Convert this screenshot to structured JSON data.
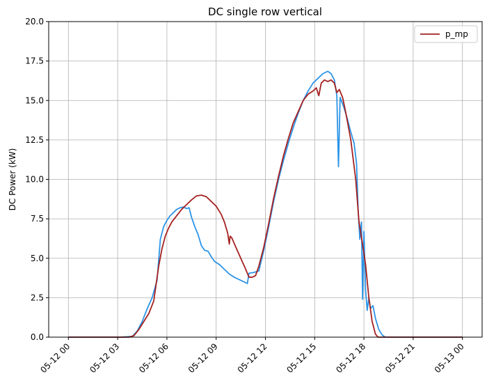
{
  "chart_data": {
    "type": "line",
    "title": "DC single row vertical",
    "xlabel": "",
    "ylabel": "DC Power (kW)",
    "xlim": [
      "05-12 00",
      "05-13 00"
    ],
    "ylim": [
      0,
      20
    ],
    "grid": true,
    "legend_position": "top-right",
    "x_ticks": [
      "05-12 00",
      "05-12 03",
      "05-12 06",
      "05-12 09",
      "05-12 12",
      "05-12 15",
      "05-12 18",
      "05-12 21",
      "05-13 00"
    ],
    "y_ticks": [
      "0.0",
      "2.5",
      "5.0",
      "7.5",
      "10.0",
      "12.5",
      "15.0",
      "17.5",
      "20.0"
    ],
    "x_unit": "hour of 2024-05-12",
    "series": [
      {
        "name": "",
        "color": "#2c94e6",
        "in_legend": false,
        "points": [
          [
            0,
            0
          ],
          [
            3.2,
            0
          ],
          [
            3.9,
            0.05
          ],
          [
            4.2,
            0.4
          ],
          [
            4.5,
            1.0
          ],
          [
            4.8,
            1.8
          ],
          [
            5.1,
            2.5
          ],
          [
            5.4,
            3.6
          ],
          [
            5.6,
            6.2
          ],
          [
            5.8,
            7.0
          ],
          [
            6.0,
            7.4
          ],
          [
            6.2,
            7.7
          ],
          [
            6.4,
            7.9
          ],
          [
            6.6,
            8.1
          ],
          [
            6.8,
            8.2
          ],
          [
            7.0,
            8.25
          ],
          [
            7.2,
            8.15
          ],
          [
            7.35,
            8.2
          ],
          [
            7.5,
            7.6
          ],
          [
            7.7,
            7.0
          ],
          [
            7.9,
            6.5
          ],
          [
            8.1,
            5.8
          ],
          [
            8.3,
            5.5
          ],
          [
            8.5,
            5.45
          ],
          [
            8.7,
            5.1
          ],
          [
            8.9,
            4.8
          ],
          [
            9.2,
            4.6
          ],
          [
            9.5,
            4.3
          ],
          [
            9.8,
            4.0
          ],
          [
            10.1,
            3.8
          ],
          [
            10.4,
            3.65
          ],
          [
            10.7,
            3.5
          ],
          [
            10.9,
            3.4
          ],
          [
            11.0,
            4.05
          ],
          [
            11.3,
            4.1
          ],
          [
            11.6,
            4.2
          ],
          [
            11.9,
            5.5
          ],
          [
            12.2,
            7.0
          ],
          [
            12.5,
            8.6
          ],
          [
            12.8,
            10.0
          ],
          [
            13.1,
            11.2
          ],
          [
            13.4,
            12.3
          ],
          [
            13.7,
            13.3
          ],
          [
            14.0,
            14.2
          ],
          [
            14.3,
            15.0
          ],
          [
            14.6,
            15.6
          ],
          [
            14.9,
            16.1
          ],
          [
            15.2,
            16.4
          ],
          [
            15.5,
            16.7
          ],
          [
            15.8,
            16.85
          ],
          [
            16.0,
            16.7
          ],
          [
            16.2,
            16.3
          ],
          [
            16.35,
            15.3
          ],
          [
            16.45,
            10.8
          ],
          [
            16.55,
            15.2
          ],
          [
            16.8,
            14.5
          ],
          [
            17.0,
            13.8
          ],
          [
            17.2,
            13.0
          ],
          [
            17.4,
            12.3
          ],
          [
            17.55,
            11.0
          ],
          [
            17.65,
            8.0
          ],
          [
            17.75,
            6.2
          ],
          [
            17.85,
            7.3
          ],
          [
            17.92,
            2.4
          ],
          [
            18.0,
            6.7
          ],
          [
            18.1,
            3.0
          ],
          [
            18.2,
            1.7
          ],
          [
            18.3,
            2.5
          ],
          [
            18.4,
            1.8
          ],
          [
            18.55,
            2.0
          ],
          [
            18.7,
            1.2
          ],
          [
            18.9,
            0.5
          ],
          [
            19.1,
            0.15
          ],
          [
            19.3,
            0
          ],
          [
            24,
            0
          ]
        ]
      },
      {
        "name": "p_mp",
        "color": "#a52020",
        "in_legend": true,
        "points": [
          [
            0,
            0
          ],
          [
            3.7,
            0
          ],
          [
            4.0,
            0.1
          ],
          [
            4.3,
            0.5
          ],
          [
            4.6,
            1.0
          ],
          [
            4.9,
            1.5
          ],
          [
            5.2,
            2.3
          ],
          [
            5.5,
            4.5
          ],
          [
            5.7,
            5.6
          ],
          [
            5.9,
            6.4
          ],
          [
            6.1,
            6.9
          ],
          [
            6.3,
            7.3
          ],
          [
            6.6,
            7.7
          ],
          [
            6.9,
            8.1
          ],
          [
            7.2,
            8.4
          ],
          [
            7.5,
            8.7
          ],
          [
            7.8,
            8.95
          ],
          [
            8.1,
            9.0
          ],
          [
            8.4,
            8.9
          ],
          [
            8.7,
            8.6
          ],
          [
            9.0,
            8.3
          ],
          [
            9.3,
            7.8
          ],
          [
            9.5,
            7.3
          ],
          [
            9.7,
            6.6
          ],
          [
            9.8,
            5.9
          ],
          [
            9.85,
            6.4
          ],
          [
            9.95,
            6.3
          ],
          [
            10.2,
            5.7
          ],
          [
            10.5,
            5.0
          ],
          [
            10.8,
            4.3
          ],
          [
            11.0,
            3.8
          ],
          [
            11.2,
            3.8
          ],
          [
            11.4,
            3.9
          ],
          [
            11.6,
            4.5
          ],
          [
            11.9,
            5.7
          ],
          [
            12.2,
            7.2
          ],
          [
            12.5,
            8.8
          ],
          [
            12.8,
            10.2
          ],
          [
            13.1,
            11.5
          ],
          [
            13.4,
            12.6
          ],
          [
            13.7,
            13.6
          ],
          [
            14.0,
            14.3
          ],
          [
            14.3,
            15.0
          ],
          [
            14.6,
            15.4
          ],
          [
            14.9,
            15.6
          ],
          [
            15.1,
            15.8
          ],
          [
            15.25,
            15.3
          ],
          [
            15.4,
            16.1
          ],
          [
            15.6,
            16.3
          ],
          [
            15.8,
            16.2
          ],
          [
            16.0,
            16.3
          ],
          [
            16.2,
            16.1
          ],
          [
            16.35,
            15.5
          ],
          [
            16.5,
            15.7
          ],
          [
            16.7,
            15.2
          ],
          [
            16.9,
            14.2
          ],
          [
            17.2,
            12.5
          ],
          [
            17.5,
            10.0
          ],
          [
            17.7,
            7.3
          ],
          [
            17.9,
            6.0
          ],
          [
            18.1,
            4.6
          ],
          [
            18.3,
            2.5
          ],
          [
            18.5,
            1.0
          ],
          [
            18.7,
            0.2
          ],
          [
            18.85,
            0
          ],
          [
            24,
            0
          ]
        ]
      }
    ]
  }
}
